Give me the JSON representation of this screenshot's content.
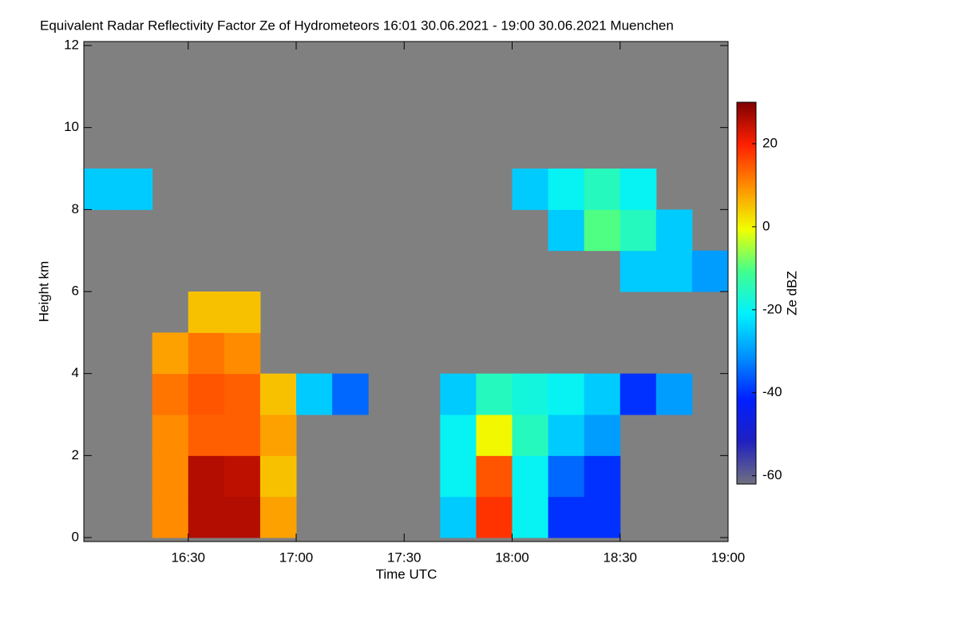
{
  "chart_data": {
    "type": "heatmap",
    "title": "Equivalent Radar Reflectivity Factor Ze of Hydrometeors   16:01 30.06.2021 - 19:00 30.06.2021 Muenchen",
    "xlabel": "Time UTC",
    "ylabel": "Height km",
    "colorbar_label": "Ze dBZ",
    "xlim": [
      "16:01",
      "19:00"
    ],
    "xticks": [
      "16:30",
      "17:00",
      "17:30",
      "18:00",
      "18:30",
      "19:00"
    ],
    "ylim": [
      0,
      12
    ],
    "yticks": [
      0,
      2,
      4,
      6,
      8,
      10,
      12
    ],
    "clim": [
      -62,
      30
    ],
    "cticks": [
      -60,
      -40,
      -20,
      0,
      20
    ],
    "colorscale": [
      "#707080",
      "#2020c0",
      "#0020ff",
      "#0090ff",
      "#00f0ff",
      "#40ff90",
      "#f0ff00",
      "#ff9000",
      "#ff2000",
      "#800000"
    ],
    "background": "#808080",
    "x_edges": [
      "16:01",
      "16:10",
      "16:20",
      "16:30",
      "16:40",
      "16:50",
      "17:00",
      "17:10",
      "17:20",
      "17:30",
      "17:40",
      "17:50",
      "18:00",
      "18:10",
      "18:20",
      "18:30",
      "18:40",
      "18:50",
      "19:00"
    ],
    "y_edges": [
      0,
      1,
      2,
      3,
      4,
      5,
      6,
      7,
      8,
      9,
      10,
      11,
      12
    ],
    "z": [
      [
        null,
        null,
        10,
        26,
        26,
        8,
        null,
        null,
        null,
        null,
        -25,
        18,
        -20,
        -40,
        -40,
        null,
        null,
        null
      ],
      [
        null,
        null,
        10,
        26,
        25,
        5,
        null,
        null,
        null,
        null,
        -20,
        15,
        -20,
        -35,
        -40,
        null,
        null,
        null
      ],
      [
        null,
        null,
        10,
        14,
        14,
        8,
        null,
        null,
        null,
        null,
        -20,
        0,
        -15,
        -25,
        -30,
        null,
        null,
        null
      ],
      [
        null,
        null,
        12,
        15,
        14,
        5,
        -25,
        -35,
        null,
        null,
        -25,
        -15,
        -18,
        -20,
        -25,
        -40,
        -30,
        null
      ],
      [
        null,
        null,
        8,
        12,
        10,
        null,
        null,
        null,
        null,
        null,
        null,
        null,
        null,
        null,
        null,
        null,
        null,
        null
      ],
      [
        null,
        null,
        null,
        5,
        5,
        null,
        null,
        null,
        null,
        null,
        null,
        null,
        null,
        null,
        null,
        null,
        null,
        null
      ],
      [
        null,
        null,
        null,
        null,
        null,
        null,
        null,
        null,
        null,
        null,
        null,
        null,
        null,
        null,
        null,
        -25,
        -25,
        -30
      ],
      [
        null,
        null,
        null,
        null,
        null,
        null,
        null,
        null,
        null,
        null,
        null,
        null,
        null,
        -25,
        -10,
        -15,
        -25,
        null
      ],
      [
        -25,
        -25,
        null,
        null,
        null,
        null,
        null,
        null,
        null,
        null,
        null,
        null,
        -25,
        -20,
        -15,
        -20,
        null,
        null
      ],
      [
        null,
        null,
        null,
        null,
        null,
        null,
        null,
        null,
        null,
        null,
        null,
        null,
        null,
        null,
        null,
        null,
        null,
        null
      ],
      [
        null,
        null,
        null,
        null,
        null,
        null,
        null,
        null,
        null,
        null,
        null,
        null,
        null,
        null,
        null,
        null,
        null,
        null
      ],
      [
        null,
        null,
        null,
        null,
        null,
        null,
        null,
        null,
        null,
        null,
        null,
        null,
        null,
        null,
        null,
        null,
        null,
        null
      ]
    ]
  }
}
